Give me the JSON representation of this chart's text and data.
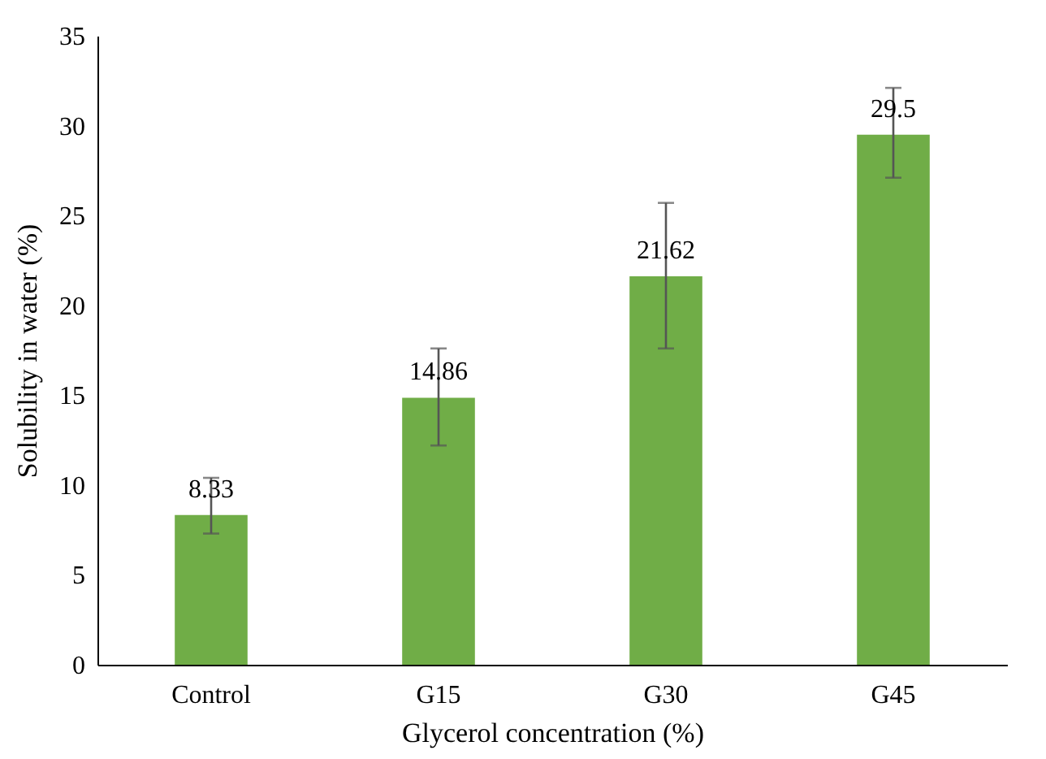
{
  "chart_data": {
    "type": "bar",
    "xlabel": "Glycerol concentration (%)",
    "ylabel": "Solubility in water (%)",
    "categories": [
      "Control",
      "G15",
      "G30",
      "G45"
    ],
    "values": [
      8.33,
      14.86,
      21.62,
      29.5
    ],
    "errors": [
      [
        7.3,
        10.4
      ],
      [
        12.2,
        17.6
      ],
      [
        17.6,
        25.7
      ],
      [
        27.1,
        32.1
      ]
    ],
    "color": "#70ad47",
    "data_labels": true,
    "ylim": [
      0,
      35
    ],
    "yticks": [
      0,
      5,
      10,
      15,
      20,
      25,
      30,
      35
    ],
    "grid": false
  }
}
